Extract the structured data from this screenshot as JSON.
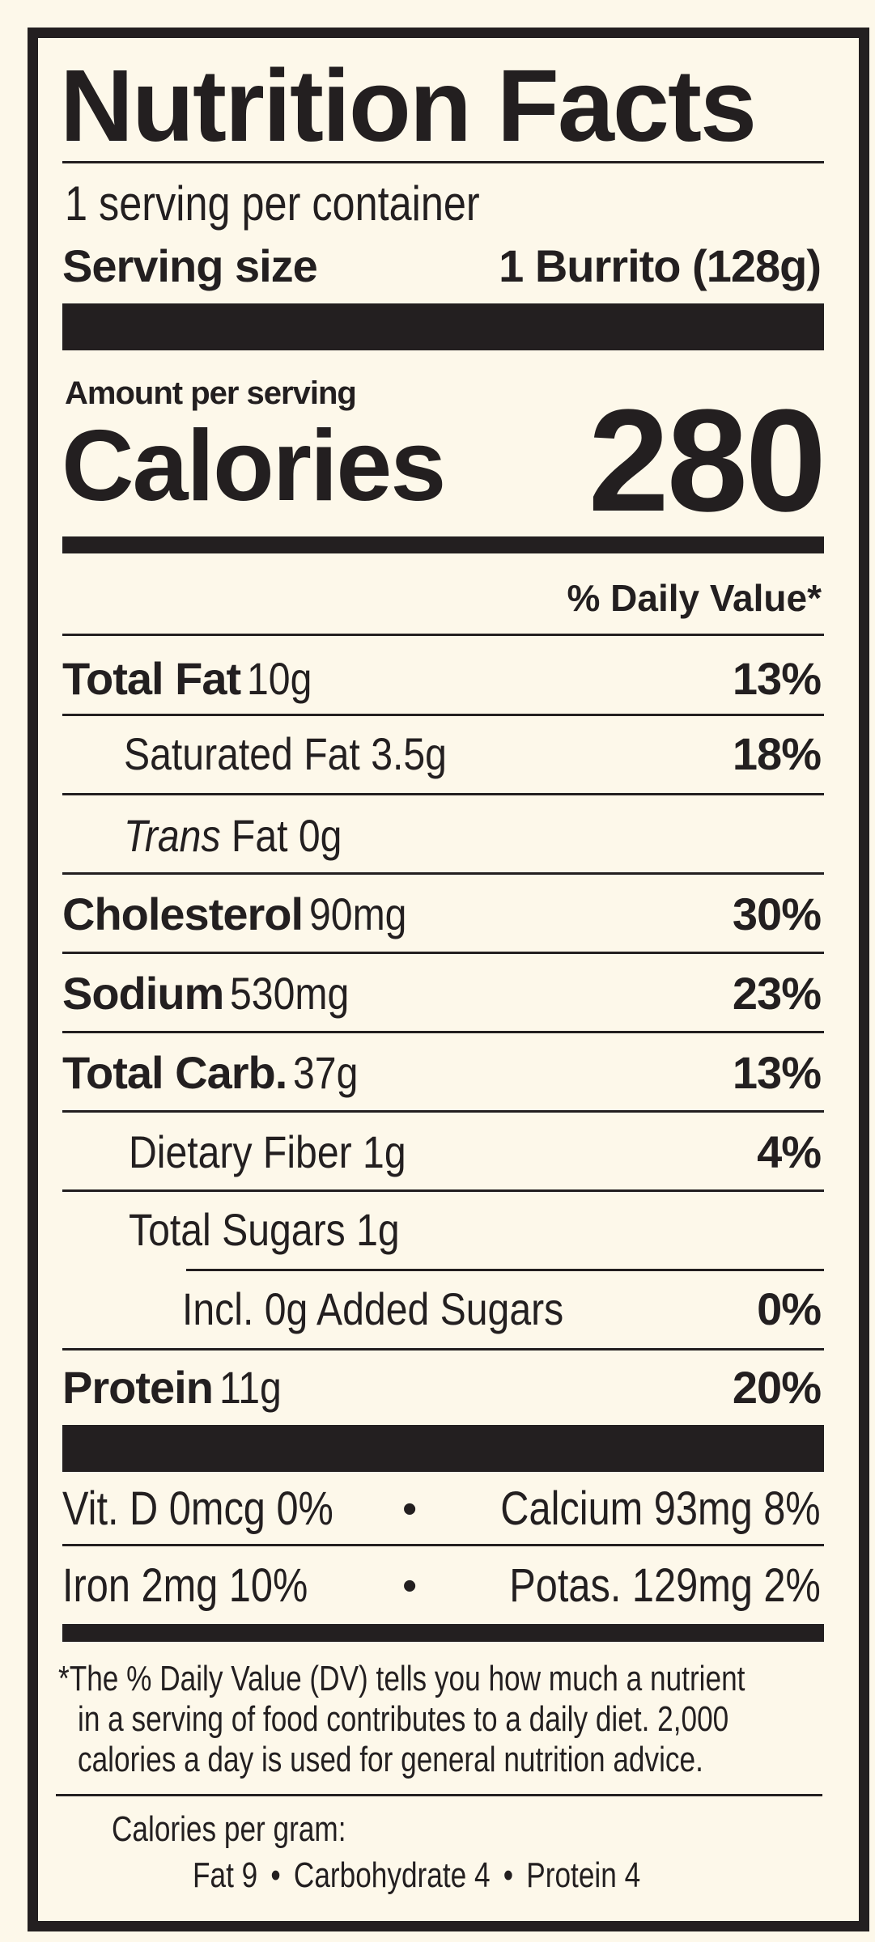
{
  "colors": {
    "background": "#fdf8ea",
    "ink": "#231f20"
  },
  "title": "Nutrition Facts",
  "servings_per_container": "1 serving per container",
  "serving_size": {
    "label": "Serving size",
    "value": "1 Burrito (128g)"
  },
  "amount_per_serving": "Amount per serving",
  "calories": {
    "label": "Calories",
    "value": "280"
  },
  "daily_value_header": "% Daily Value*",
  "nutrients": [
    {
      "label": "Total Fat",
      "amount": "10g",
      "dv": "13%"
    },
    {
      "label": "Saturated Fat",
      "amount": "3.5g",
      "dv": "18%"
    },
    {
      "label_italic": "Trans",
      "label": "Fat",
      "amount": "0g",
      "dv": ""
    },
    {
      "label": "Cholesterol",
      "amount": "90mg",
      "dv": "30%"
    },
    {
      "label": "Sodium",
      "amount": "530mg",
      "dv": "23%"
    },
    {
      "label": "Total Carb.",
      "amount": "37g",
      "dv": "13%"
    },
    {
      "label": "Dietary Fiber",
      "amount": "1g",
      "dv": "4%"
    },
    {
      "label": "Total Sugars",
      "amount": "1g",
      "dv": ""
    },
    {
      "label": "Incl. 0g Added Sugars",
      "amount": "",
      "dv": "0%"
    },
    {
      "label": "Protein",
      "amount": "11g",
      "dv": "20%"
    }
  ],
  "micronutrients": [
    {
      "left": "Vit. D 0mcg 0%",
      "right": "Calcium 93mg 8%"
    },
    {
      "left": "Iron 2mg 10%",
      "right": "Potas. 129mg 2%"
    }
  ],
  "separator": "•",
  "footnote": [
    "*The % Daily Value (DV) tells you how much a nutrient",
    "in a serving of food contributes to a daily diet. 2,000",
    "calories a day is used for general nutrition advice."
  ],
  "calories_per_gram": {
    "label": "Calories per gram:",
    "fat": "Fat 9",
    "carbohydrate": "Carbohydrate 4",
    "protein": "Protein 4"
  }
}
